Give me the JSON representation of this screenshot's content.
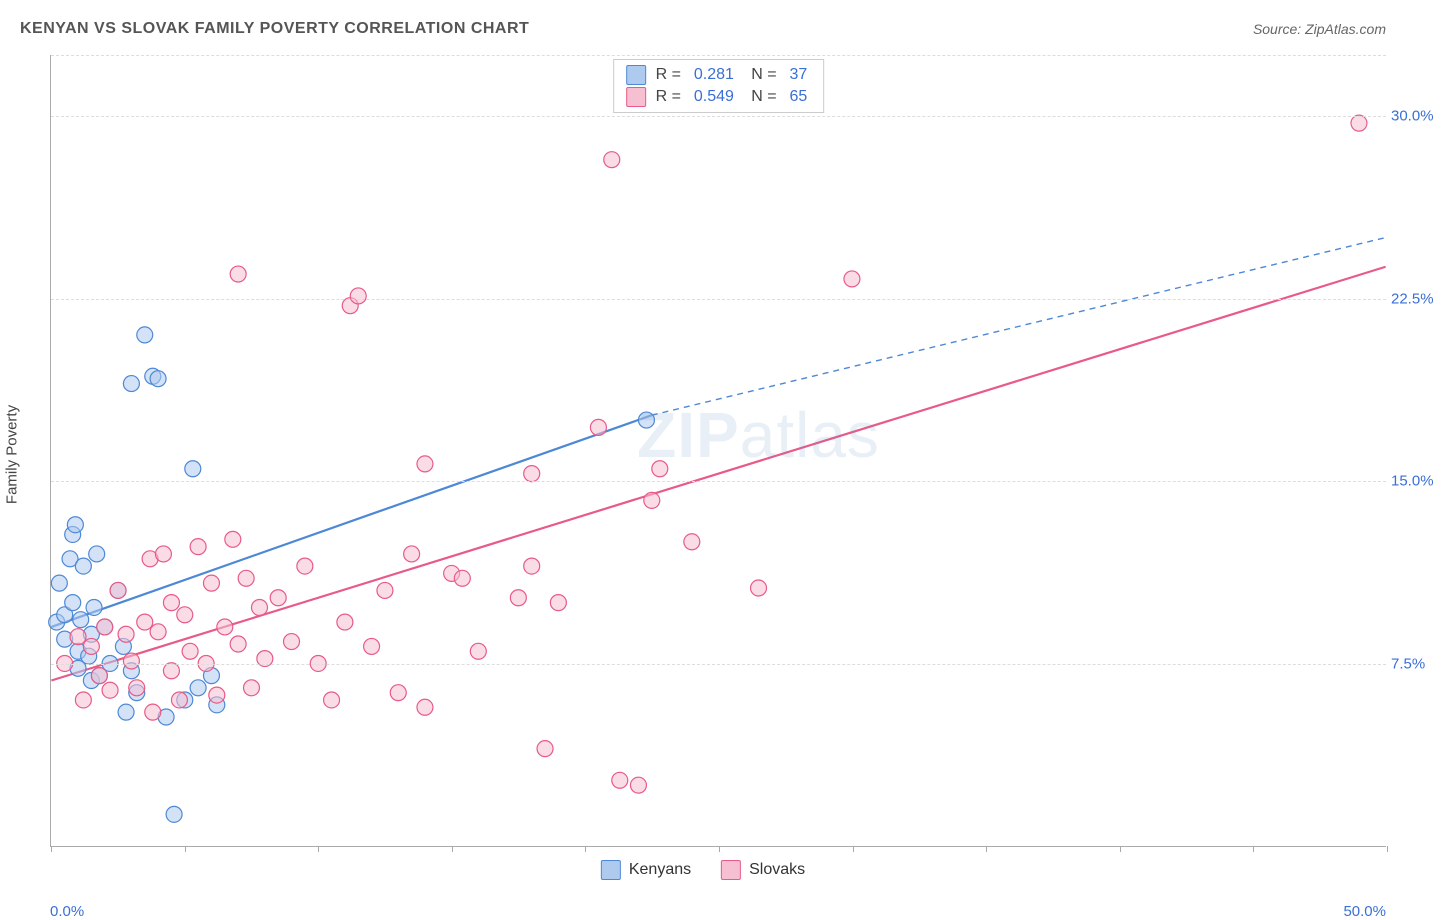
{
  "title": "KENYAN VS SLOVAK FAMILY POVERTY CORRELATION CHART",
  "source": "Source: ZipAtlas.com",
  "ylabel": "Family Poverty",
  "watermark_bold": "ZIP",
  "watermark_rest": "atlas",
  "chart": {
    "type": "scatter",
    "xlim": [
      0,
      50
    ],
    "ylim": [
      0,
      32.5
    ],
    "x_min_label": "0.0%",
    "x_max_label": "50.0%",
    "y_ticks": [
      7.5,
      15.0,
      22.5,
      30.0
    ],
    "y_tick_labels": [
      "7.5%",
      "15.0%",
      "22.5%",
      "30.0%"
    ],
    "x_tick_positions": [
      0,
      5,
      10,
      15,
      20,
      25,
      30,
      35,
      40,
      45,
      50
    ],
    "grid_color": "#dddddd",
    "axis_color": "#aaaaaa",
    "background_color": "#ffffff",
    "point_radius": 8,
    "point_stroke_width": 1.2,
    "point_fill_opacity": 0.25,
    "line_width": 2.2
  },
  "series": [
    {
      "id": "kenyans",
      "label": "Kenyans",
      "color": "#4d88d6",
      "fill": "#aecbef",
      "R": "0.281",
      "N": "37",
      "regression": {
        "x1": 0,
        "y1": 9.0,
        "x2": 22.5,
        "y2": 17.7,
        "x2_dash": 50,
        "y2_dash": 25.0
      },
      "points": [
        [
          0.2,
          9.2
        ],
        [
          0.3,
          10.8
        ],
        [
          0.5,
          9.5
        ],
        [
          0.5,
          8.5
        ],
        [
          0.7,
          11.8
        ],
        [
          0.8,
          12.8
        ],
        [
          0.8,
          10.0
        ],
        [
          0.9,
          13.2
        ],
        [
          1.0,
          7.3
        ],
        [
          1.0,
          8.0
        ],
        [
          1.1,
          9.3
        ],
        [
          1.2,
          11.5
        ],
        [
          1.4,
          7.8
        ],
        [
          1.5,
          6.8
        ],
        [
          1.5,
          8.7
        ],
        [
          1.6,
          9.8
        ],
        [
          1.7,
          12.0
        ],
        [
          1.8,
          7.0
        ],
        [
          2.0,
          9.0
        ],
        [
          2.2,
          7.5
        ],
        [
          2.5,
          10.5
        ],
        [
          2.7,
          8.2
        ],
        [
          2.8,
          5.5
        ],
        [
          3.0,
          19.0
        ],
        [
          3.0,
          7.2
        ],
        [
          3.2,
          6.3
        ],
        [
          3.5,
          21.0
        ],
        [
          3.8,
          19.3
        ],
        [
          4.0,
          19.2
        ],
        [
          4.3,
          5.3
        ],
        [
          4.6,
          1.3
        ],
        [
          5.0,
          6.0
        ],
        [
          5.3,
          15.5
        ],
        [
          5.5,
          6.5
        ],
        [
          6.2,
          5.8
        ],
        [
          6.0,
          7.0
        ],
        [
          22.3,
          17.5
        ]
      ]
    },
    {
      "id": "slovaks",
      "label": "Slovaks",
      "color": "#e85a87",
      "fill": "#f6c0d2",
      "R": "0.549",
      "N": "65",
      "regression": {
        "x1": 0,
        "y1": 6.8,
        "x2": 50,
        "y2": 23.8,
        "x2_dash": 50,
        "y2_dash": 23.8
      },
      "points": [
        [
          0.5,
          7.5
        ],
        [
          1.0,
          8.6
        ],
        [
          1.2,
          6.0
        ],
        [
          1.5,
          8.2
        ],
        [
          1.8,
          7.0
        ],
        [
          2.0,
          9.0
        ],
        [
          2.2,
          6.4
        ],
        [
          2.5,
          10.5
        ],
        [
          2.8,
          8.7
        ],
        [
          3.0,
          7.6
        ],
        [
          3.2,
          6.5
        ],
        [
          3.5,
          9.2
        ],
        [
          3.7,
          11.8
        ],
        [
          3.8,
          5.5
        ],
        [
          4.0,
          8.8
        ],
        [
          4.2,
          12.0
        ],
        [
          4.5,
          7.2
        ],
        [
          4.5,
          10.0
        ],
        [
          4.8,
          6.0
        ],
        [
          5.0,
          9.5
        ],
        [
          5.2,
          8.0
        ],
        [
          5.5,
          12.3
        ],
        [
          5.8,
          7.5
        ],
        [
          6.0,
          10.8
        ],
        [
          6.2,
          6.2
        ],
        [
          6.5,
          9.0
        ],
        [
          6.8,
          12.6
        ],
        [
          7.0,
          8.3
        ],
        [
          7.0,
          23.5
        ],
        [
          7.3,
          11.0
        ],
        [
          7.5,
          6.5
        ],
        [
          7.8,
          9.8
        ],
        [
          8.0,
          7.7
        ],
        [
          8.5,
          10.2
        ],
        [
          9.0,
          8.4
        ],
        [
          9.5,
          11.5
        ],
        [
          10.0,
          7.5
        ],
        [
          10.5,
          6.0
        ],
        [
          11.0,
          9.2
        ],
        [
          11.2,
          22.2
        ],
        [
          11.5,
          22.6
        ],
        [
          12.0,
          8.2
        ],
        [
          12.5,
          10.5
        ],
        [
          13.0,
          6.3
        ],
        [
          13.5,
          12.0
        ],
        [
          14.0,
          15.7
        ],
        [
          14.0,
          5.7
        ],
        [
          15.0,
          11.2
        ],
        [
          15.4,
          11.0
        ],
        [
          16.0,
          8.0
        ],
        [
          17.5,
          10.2
        ],
        [
          18.0,
          15.3
        ],
        [
          18.0,
          11.5
        ],
        [
          18.5,
          4.0
        ],
        [
          19.0,
          10.0
        ],
        [
          20.5,
          17.2
        ],
        [
          21.0,
          28.2
        ],
        [
          21.3,
          2.7
        ],
        [
          22.0,
          2.5
        ],
        [
          22.5,
          14.2
        ],
        [
          22.8,
          15.5
        ],
        [
          24.0,
          12.5
        ],
        [
          26.5,
          10.6
        ],
        [
          30.0,
          23.3
        ],
        [
          49.0,
          29.7
        ]
      ]
    }
  ],
  "legend_top": {
    "R_label": "R =",
    "N_label": "N ="
  },
  "legend_bottom": [
    {
      "ref": "kenyans"
    },
    {
      "ref": "slovaks"
    }
  ]
}
